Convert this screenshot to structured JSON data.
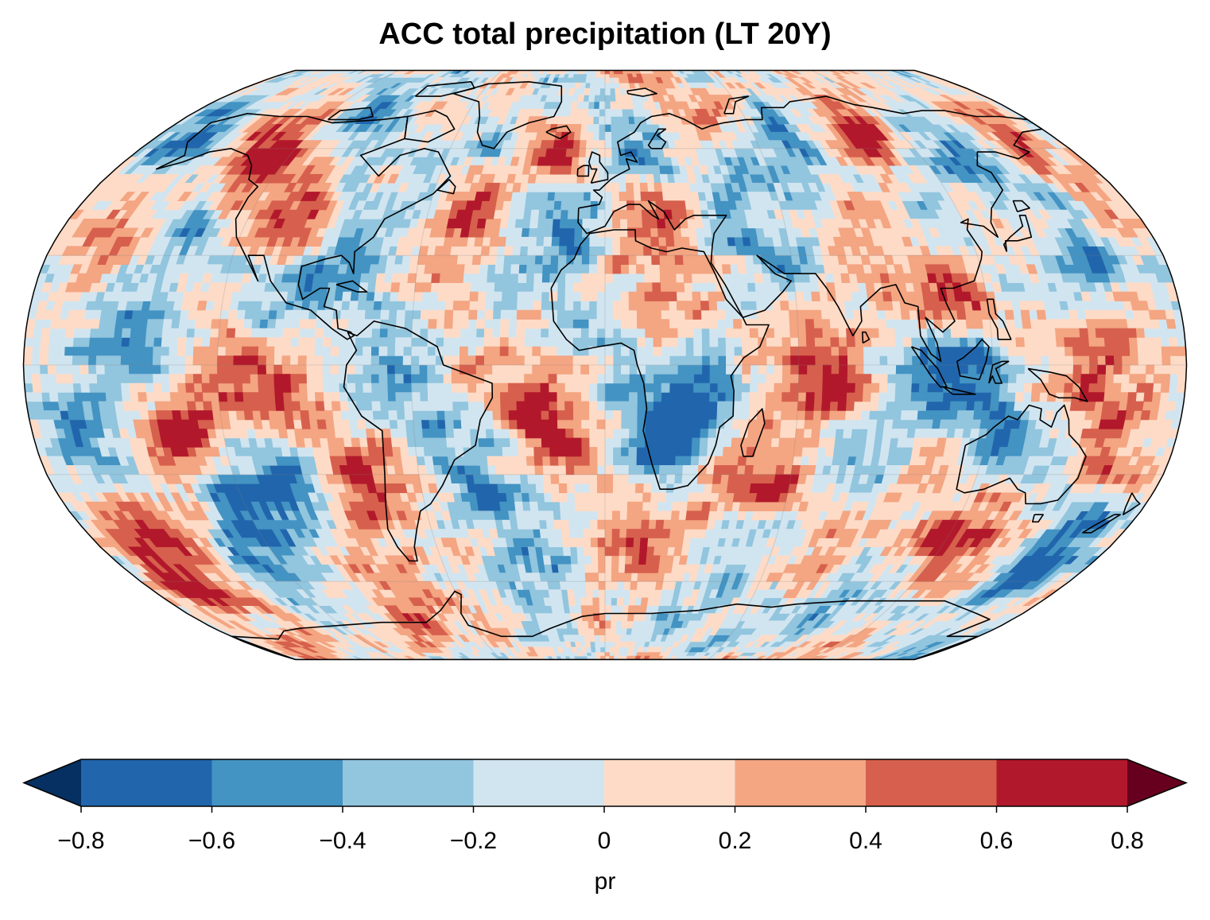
{
  "title": "ACC total precipitation (LT 20Y)",
  "map": {
    "projection": "Robinson",
    "grid_lines": true,
    "coastlines": true,
    "field_description_values": "gridded correlation field, values range -0.8 to 0.8"
  },
  "colorbar": {
    "label": "pr",
    "ticks": [
      "−0.8",
      "−0.6",
      "−0.4",
      "−0.2",
      "0",
      "0.2",
      "0.4",
      "0.6",
      "0.8"
    ],
    "tick_values": [
      -0.8,
      -0.6,
      -0.4,
      -0.2,
      0,
      0.2,
      0.4,
      0.6,
      0.8
    ],
    "extend": "both",
    "colors": [
      "#2166ac",
      "#4393c3",
      "#92c5de",
      "#d1e5f0",
      "#fddbc7",
      "#f4a582",
      "#d6604d",
      "#b2182b"
    ],
    "under_color": "#053061",
    "over_color": "#67001f"
  }
}
